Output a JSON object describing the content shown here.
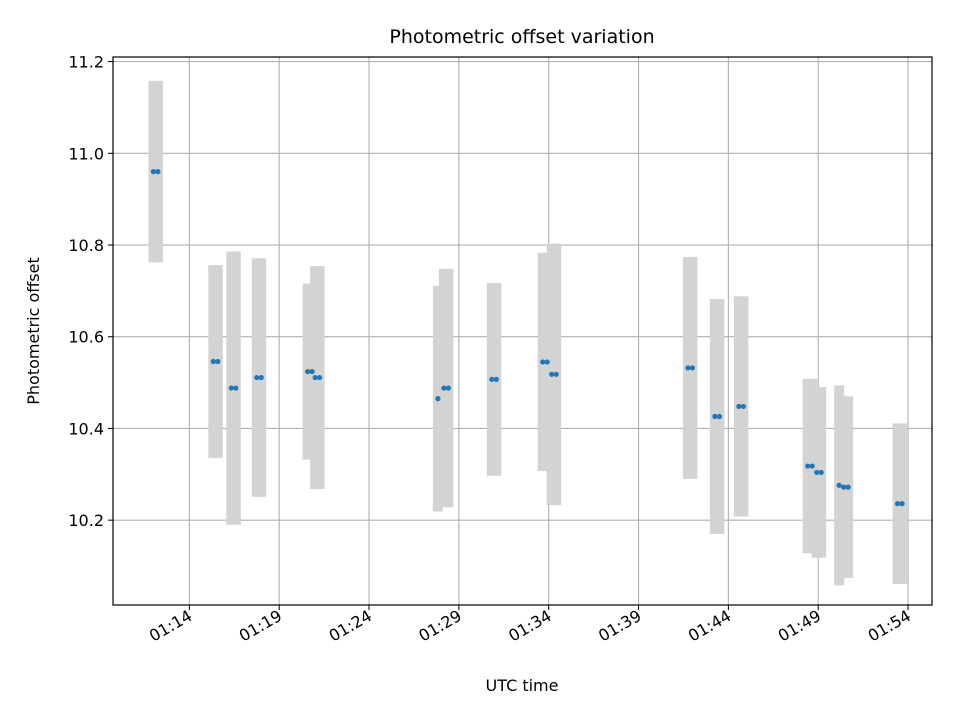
{
  "chart_data": {
    "type": "scatter",
    "title": "Photometric offset variation",
    "xlabel": "UTC time",
    "ylabel": "Photometric offset",
    "xlim": [
      "01:09:45",
      "01:55:20"
    ],
    "ylim": [
      10.015,
      11.21
    ],
    "x_ticks": [
      "01:14",
      "01:19",
      "01:24",
      "01:29",
      "01:34",
      "01:39",
      "01:44",
      "01:49",
      "01:54"
    ],
    "y_ticks": [
      10.2,
      10.4,
      10.6,
      10.8,
      11.0,
      11.2
    ],
    "y_tick_labels": [
      "10.2",
      "10.4",
      "10.6",
      "10.8",
      "11.0",
      "11.2"
    ],
    "grid": true,
    "colors": {
      "points": "#1f77b4",
      "error_bars": "#d3d3d3",
      "grid": "#b0b0b0"
    },
    "points": [
      {
        "t": "01:12:00",
        "y": 10.96,
        "err": 0.198
      },
      {
        "t": "01:12:15",
        "y": 10.96,
        "err": 0.198
      },
      {
        "t": "01:15:20",
        "y": 10.546,
        "err": 0.21
      },
      {
        "t": "01:15:35",
        "y": 10.546,
        "err": 0.21
      },
      {
        "t": "01:16:20",
        "y": 10.488,
        "err": 0.298
      },
      {
        "t": "01:16:35",
        "y": 10.488,
        "err": 0.298
      },
      {
        "t": "01:17:45",
        "y": 10.511,
        "err": 0.26
      },
      {
        "t": "01:18:00",
        "y": 10.511,
        "err": 0.26
      },
      {
        "t": "01:20:35",
        "y": 10.524,
        "err": 0.192
      },
      {
        "t": "01:20:50",
        "y": 10.524,
        "err": 0.192
      },
      {
        "t": "01:21:00",
        "y": 10.511,
        "err": 0.243
      },
      {
        "t": "01:21:15",
        "y": 10.511,
        "err": 0.243
      },
      {
        "t": "01:27:50",
        "y": 10.465,
        "err": 0.246
      },
      {
        "t": "01:28:10",
        "y": 10.488,
        "err": 0.26
      },
      {
        "t": "01:28:25",
        "y": 10.488,
        "err": 0.26
      },
      {
        "t": "01:30:50",
        "y": 10.507,
        "err": 0.21
      },
      {
        "t": "01:31:05",
        "y": 10.507,
        "err": 0.21
      },
      {
        "t": "01:33:40",
        "y": 10.545,
        "err": 0.238
      },
      {
        "t": "01:33:55",
        "y": 10.545,
        "err": 0.238
      },
      {
        "t": "01:34:10",
        "y": 10.518,
        "err": 0.285
      },
      {
        "t": "01:34:25",
        "y": 10.518,
        "err": 0.285
      },
      {
        "t": "01:41:45",
        "y": 10.532,
        "err": 0.242
      },
      {
        "t": "01:42:00",
        "y": 10.532,
        "err": 0.242
      },
      {
        "t": "01:43:15",
        "y": 10.426,
        "err": 0.256
      },
      {
        "t": "01:43:30",
        "y": 10.426,
        "err": 0.256
      },
      {
        "t": "01:44:35",
        "y": 10.448,
        "err": 0.24
      },
      {
        "t": "01:44:50",
        "y": 10.448,
        "err": 0.24
      },
      {
        "t": "01:48:25",
        "y": 10.318,
        "err": 0.19
      },
      {
        "t": "01:48:40",
        "y": 10.318,
        "err": 0.19
      },
      {
        "t": "01:48:55",
        "y": 10.304,
        "err": 0.186
      },
      {
        "t": "01:49:10",
        "y": 10.304,
        "err": 0.186
      },
      {
        "t": "01:50:10",
        "y": 10.276,
        "err": 0.218
      },
      {
        "t": "01:50:25",
        "y": 10.272,
        "err": 0.198
      },
      {
        "t": "01:50:40",
        "y": 10.272,
        "err": 0.198
      },
      {
        "t": "01:53:25",
        "y": 10.236,
        "err": 0.175
      },
      {
        "t": "01:53:40",
        "y": 10.236,
        "err": 0.175
      }
    ]
  }
}
